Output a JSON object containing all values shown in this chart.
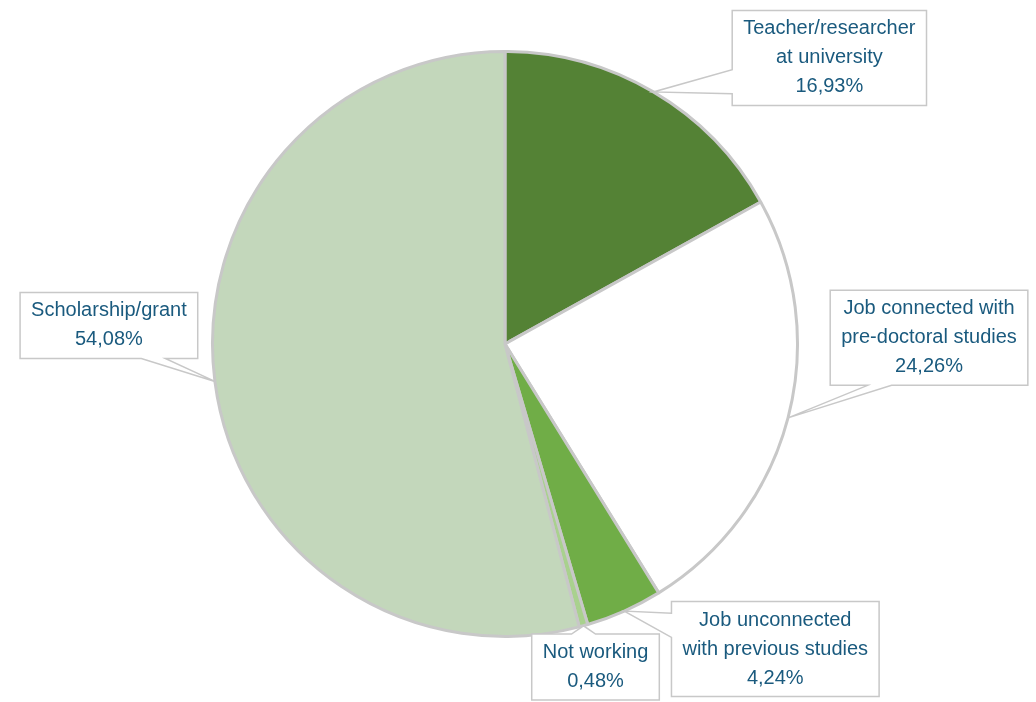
{
  "chart_data": {
    "type": "pie",
    "categories": [
      "Teacher/researcher at university",
      "Job connected with pre-doctoral studies",
      "Job unconnected with previous studies",
      "Not working",
      "Scholarship/grant"
    ],
    "values": [
      16.93,
      24.26,
      4.24,
      0.48,
      54.08
    ],
    "colors": [
      "#548235",
      "#ffffff",
      "#70ad47",
      "#a9d18e",
      "#c3d7bb"
    ],
    "value_labels": [
      "16,93%",
      "24,26%",
      "4,24%",
      "0,48%",
      "54,08%"
    ]
  }
}
